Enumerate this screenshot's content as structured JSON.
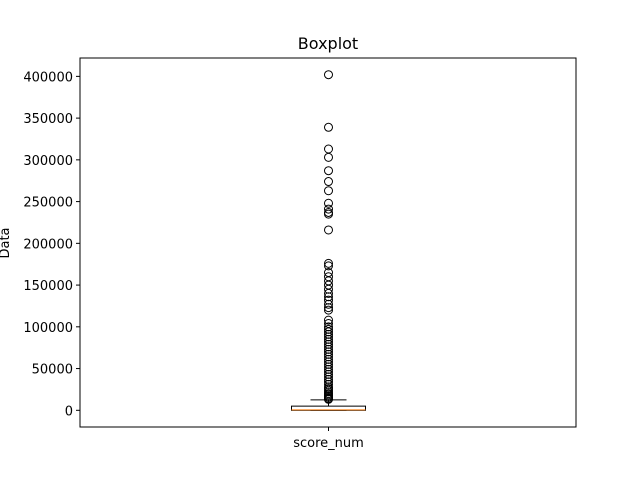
{
  "chart_data": {
    "type": "boxplot",
    "title": "Boxplot",
    "xlabel": "",
    "ylabel": "Data",
    "categories": [
      "score_num"
    ],
    "ylim": [
      -20000,
      422000
    ],
    "yticks": [
      0,
      50000,
      100000,
      150000,
      200000,
      250000,
      300000,
      350000,
      400000
    ],
    "ytick_labels": [
      "0",
      "50000",
      "100000",
      "150000",
      "200000",
      "250000",
      "300000",
      "350000",
      "400000"
    ],
    "grid": false,
    "box": {
      "whisker_low": 0,
      "q1": 0,
      "median": 500,
      "q3": 5000,
      "whisker_high": 12500
    },
    "outliers": [
      402000,
      339000,
      313000,
      303000,
      287000,
      274000,
      263000,
      248000,
      241000,
      237000,
      235000,
      216000,
      176000,
      173000,
      165000,
      160000,
      155000,
      150000,
      145000,
      140000,
      136000,
      132000,
      127000,
      123000,
      120000,
      108000,
      104000,
      100000,
      97000,
      94000,
      91000,
      88000,
      85000,
      82000,
      79000,
      76000,
      73000,
      70000,
      67000,
      64000,
      61000,
      58000,
      55000,
      52000,
      49000,
      46000,
      43000,
      40000,
      37000,
      34000,
      31000,
      28000,
      26000,
      24000,
      22000,
      20000,
      18500,
      17000,
      15500,
      14000,
      13200
    ],
    "colors": {
      "box": "#000000",
      "median": "#ff7f0e",
      "outlier": "#000000"
    }
  }
}
